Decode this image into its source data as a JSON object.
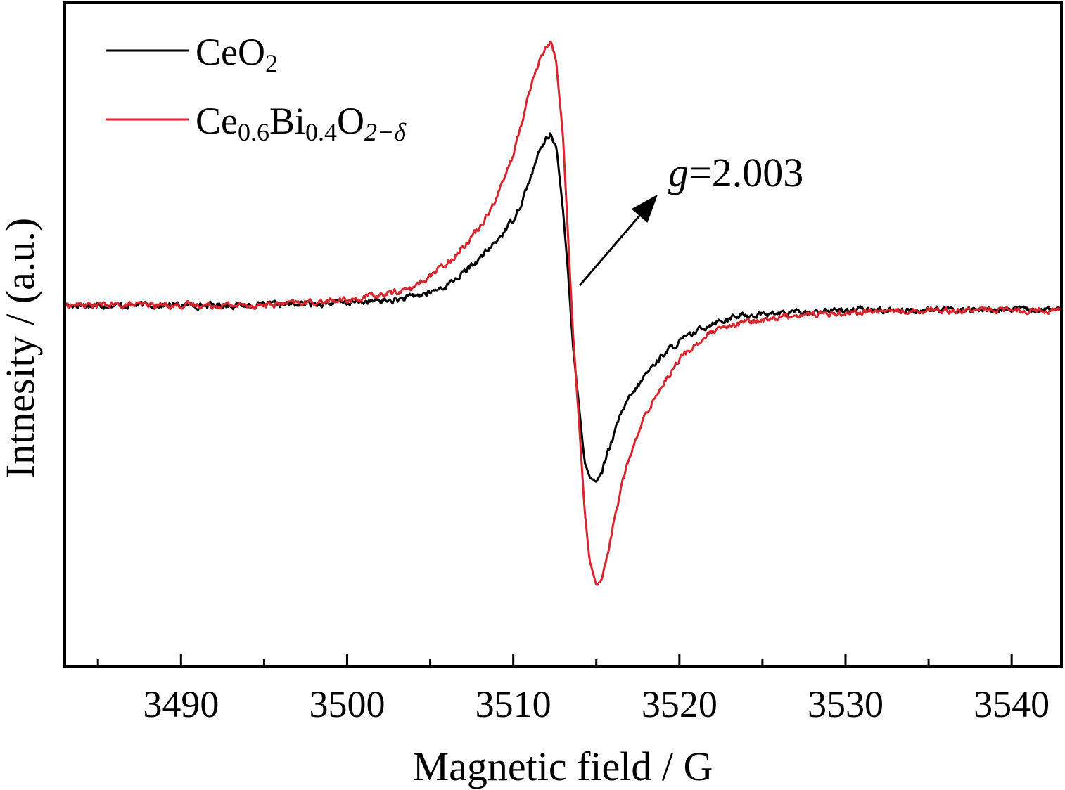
{
  "chart_data": {
    "type": "line",
    "title": "",
    "xlabel": "Magnetic field / G",
    "ylabel": "Intnesity / (a.u.)",
    "xlim": [
      3483,
      3543
    ],
    "ylim": [
      -1.45,
      1.25
    ],
    "x_ticks": [
      3490,
      3500,
      3510,
      3520,
      3530,
      3540
    ],
    "x_tick_labels": [
      "3490",
      "3500",
      "3510",
      "3520",
      "3530",
      "3540"
    ],
    "x_minor_ticks": [
      3485,
      3495,
      3505,
      3515,
      3525,
      3535
    ],
    "y_ticks_shown": false,
    "grid": false,
    "legend_position": "top-left",
    "series": [
      {
        "name": "CeO2",
        "label_main": "CeO",
        "label_sub": "2",
        "color": "#000000",
        "x": [
          3483,
          3490,
          3495,
          3500,
          3503,
          3505,
          3506,
          3507,
          3508,
          3509,
          3510,
          3510.5,
          3511,
          3511.5,
          3512,
          3512.3,
          3512.6,
          3513,
          3513.3,
          3513.6,
          3514,
          3514.3,
          3514.6,
          3515,
          3515.3,
          3515.6,
          3516,
          3516.5,
          3517,
          3518,
          3519,
          3520,
          3521,
          3522,
          3524,
          3527,
          3530,
          3535,
          3543
        ],
        "y": [
          0.02,
          0.02,
          0.02,
          0.03,
          0.04,
          0.07,
          0.1,
          0.15,
          0.21,
          0.28,
          0.37,
          0.44,
          0.53,
          0.63,
          0.7,
          0.72,
          0.66,
          0.4,
          0.15,
          -0.15,
          -0.42,
          -0.62,
          -0.68,
          -0.7,
          -0.66,
          -0.6,
          -0.52,
          -0.42,
          -0.36,
          -0.26,
          -0.18,
          -0.13,
          -0.09,
          -0.05,
          -0.02,
          -0.01,
          0.0,
          0.0,
          0.0
        ]
      },
      {
        "name": "Ce0.6Bi0.4O2−δ",
        "label_parts": [
          "Ce",
          "0.6",
          "Bi",
          "0.4",
          "O",
          "2−δ"
        ],
        "color": "#d7262d",
        "x": [
          3483,
          3490,
          3495,
          3500,
          3502,
          3504,
          3505,
          3506,
          3507,
          3508,
          3509,
          3510,
          3510.5,
          3511,
          3511.5,
          3512,
          3512.3,
          3512.6,
          3513,
          3513.3,
          3513.6,
          3514,
          3514.3,
          3514.6,
          3515,
          3515.3,
          3515.6,
          3516,
          3516.5,
          3517,
          3518,
          3519,
          3520,
          3521,
          3522,
          3524,
          3527,
          3530,
          3535,
          3543
        ],
        "y": [
          0.02,
          0.02,
          0.02,
          0.04,
          0.06,
          0.09,
          0.14,
          0.19,
          0.26,
          0.34,
          0.46,
          0.63,
          0.76,
          0.9,
          1.0,
          1.07,
          1.1,
          1.0,
          0.7,
          0.3,
          -0.1,
          -0.5,
          -0.82,
          -1.02,
          -1.12,
          -1.1,
          -1.02,
          -0.88,
          -0.72,
          -0.6,
          -0.42,
          -0.3,
          -0.2,
          -0.14,
          -0.09,
          -0.05,
          -0.02,
          -0.01,
          0.0,
          0.0
        ]
      }
    ],
    "annotations": [
      {
        "text_italic": "g",
        "text_rest": "=2.003",
        "arrow_from": [
          3514.0,
          0.1
        ],
        "arrow_to": [
          3518.7,
          0.47
        ]
      }
    ]
  }
}
